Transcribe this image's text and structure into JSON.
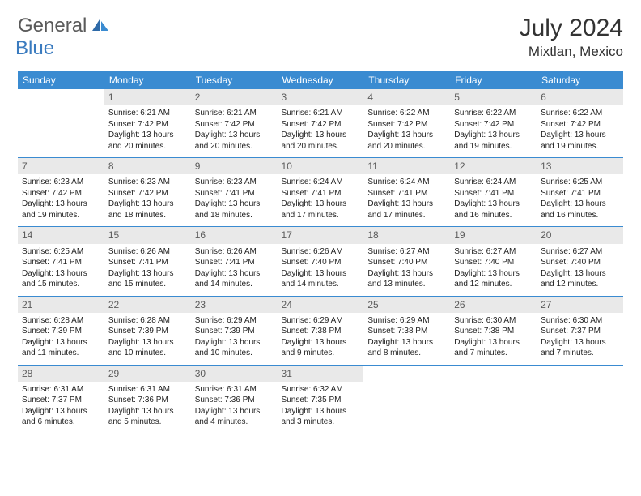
{
  "logo": {
    "word1": "General",
    "word2": "Blue"
  },
  "title": "July 2024",
  "location": "Mixtlan, Mexico",
  "colors": {
    "header_bg": "#3a8bd1",
    "header_text": "#ffffff",
    "daynum_bg": "#e9e9e9",
    "daynum_text": "#5b5b5b",
    "row_border": "#3a8bd1",
    "logo_gray": "#5a5a5a",
    "logo_blue": "#3a7bbf"
  },
  "day_names": [
    "Sunday",
    "Monday",
    "Tuesday",
    "Wednesday",
    "Thursday",
    "Friday",
    "Saturday"
  ],
  "weeks": [
    [
      null,
      {
        "n": "1",
        "sr": "Sunrise: 6:21 AM",
        "ss": "Sunset: 7:42 PM",
        "d1": "Daylight: 13 hours",
        "d2": "and 20 minutes."
      },
      {
        "n": "2",
        "sr": "Sunrise: 6:21 AM",
        "ss": "Sunset: 7:42 PM",
        "d1": "Daylight: 13 hours",
        "d2": "and 20 minutes."
      },
      {
        "n": "3",
        "sr": "Sunrise: 6:21 AM",
        "ss": "Sunset: 7:42 PM",
        "d1": "Daylight: 13 hours",
        "d2": "and 20 minutes."
      },
      {
        "n": "4",
        "sr": "Sunrise: 6:22 AM",
        "ss": "Sunset: 7:42 PM",
        "d1": "Daylight: 13 hours",
        "d2": "and 20 minutes."
      },
      {
        "n": "5",
        "sr": "Sunrise: 6:22 AM",
        "ss": "Sunset: 7:42 PM",
        "d1": "Daylight: 13 hours",
        "d2": "and 19 minutes."
      },
      {
        "n": "6",
        "sr": "Sunrise: 6:22 AM",
        "ss": "Sunset: 7:42 PM",
        "d1": "Daylight: 13 hours",
        "d2": "and 19 minutes."
      }
    ],
    [
      {
        "n": "7",
        "sr": "Sunrise: 6:23 AM",
        "ss": "Sunset: 7:42 PM",
        "d1": "Daylight: 13 hours",
        "d2": "and 19 minutes."
      },
      {
        "n": "8",
        "sr": "Sunrise: 6:23 AM",
        "ss": "Sunset: 7:42 PM",
        "d1": "Daylight: 13 hours",
        "d2": "and 18 minutes."
      },
      {
        "n": "9",
        "sr": "Sunrise: 6:23 AM",
        "ss": "Sunset: 7:41 PM",
        "d1": "Daylight: 13 hours",
        "d2": "and 18 minutes."
      },
      {
        "n": "10",
        "sr": "Sunrise: 6:24 AM",
        "ss": "Sunset: 7:41 PM",
        "d1": "Daylight: 13 hours",
        "d2": "and 17 minutes."
      },
      {
        "n": "11",
        "sr": "Sunrise: 6:24 AM",
        "ss": "Sunset: 7:41 PM",
        "d1": "Daylight: 13 hours",
        "d2": "and 17 minutes."
      },
      {
        "n": "12",
        "sr": "Sunrise: 6:24 AM",
        "ss": "Sunset: 7:41 PM",
        "d1": "Daylight: 13 hours",
        "d2": "and 16 minutes."
      },
      {
        "n": "13",
        "sr": "Sunrise: 6:25 AM",
        "ss": "Sunset: 7:41 PM",
        "d1": "Daylight: 13 hours",
        "d2": "and 16 minutes."
      }
    ],
    [
      {
        "n": "14",
        "sr": "Sunrise: 6:25 AM",
        "ss": "Sunset: 7:41 PM",
        "d1": "Daylight: 13 hours",
        "d2": "and 15 minutes."
      },
      {
        "n": "15",
        "sr": "Sunrise: 6:26 AM",
        "ss": "Sunset: 7:41 PM",
        "d1": "Daylight: 13 hours",
        "d2": "and 15 minutes."
      },
      {
        "n": "16",
        "sr": "Sunrise: 6:26 AM",
        "ss": "Sunset: 7:41 PM",
        "d1": "Daylight: 13 hours",
        "d2": "and 14 minutes."
      },
      {
        "n": "17",
        "sr": "Sunrise: 6:26 AM",
        "ss": "Sunset: 7:40 PM",
        "d1": "Daylight: 13 hours",
        "d2": "and 14 minutes."
      },
      {
        "n": "18",
        "sr": "Sunrise: 6:27 AM",
        "ss": "Sunset: 7:40 PM",
        "d1": "Daylight: 13 hours",
        "d2": "and 13 minutes."
      },
      {
        "n": "19",
        "sr": "Sunrise: 6:27 AM",
        "ss": "Sunset: 7:40 PM",
        "d1": "Daylight: 13 hours",
        "d2": "and 12 minutes."
      },
      {
        "n": "20",
        "sr": "Sunrise: 6:27 AM",
        "ss": "Sunset: 7:40 PM",
        "d1": "Daylight: 13 hours",
        "d2": "and 12 minutes."
      }
    ],
    [
      {
        "n": "21",
        "sr": "Sunrise: 6:28 AM",
        "ss": "Sunset: 7:39 PM",
        "d1": "Daylight: 13 hours",
        "d2": "and 11 minutes."
      },
      {
        "n": "22",
        "sr": "Sunrise: 6:28 AM",
        "ss": "Sunset: 7:39 PM",
        "d1": "Daylight: 13 hours",
        "d2": "and 10 minutes."
      },
      {
        "n": "23",
        "sr": "Sunrise: 6:29 AM",
        "ss": "Sunset: 7:39 PM",
        "d1": "Daylight: 13 hours",
        "d2": "and 10 minutes."
      },
      {
        "n": "24",
        "sr": "Sunrise: 6:29 AM",
        "ss": "Sunset: 7:38 PM",
        "d1": "Daylight: 13 hours",
        "d2": "and 9 minutes."
      },
      {
        "n": "25",
        "sr": "Sunrise: 6:29 AM",
        "ss": "Sunset: 7:38 PM",
        "d1": "Daylight: 13 hours",
        "d2": "and 8 minutes."
      },
      {
        "n": "26",
        "sr": "Sunrise: 6:30 AM",
        "ss": "Sunset: 7:38 PM",
        "d1": "Daylight: 13 hours",
        "d2": "and 7 minutes."
      },
      {
        "n": "27",
        "sr": "Sunrise: 6:30 AM",
        "ss": "Sunset: 7:37 PM",
        "d1": "Daylight: 13 hours",
        "d2": "and 7 minutes."
      }
    ],
    [
      {
        "n": "28",
        "sr": "Sunrise: 6:31 AM",
        "ss": "Sunset: 7:37 PM",
        "d1": "Daylight: 13 hours",
        "d2": "and 6 minutes."
      },
      {
        "n": "29",
        "sr": "Sunrise: 6:31 AM",
        "ss": "Sunset: 7:36 PM",
        "d1": "Daylight: 13 hours",
        "d2": "and 5 minutes."
      },
      {
        "n": "30",
        "sr": "Sunrise: 6:31 AM",
        "ss": "Sunset: 7:36 PM",
        "d1": "Daylight: 13 hours",
        "d2": "and 4 minutes."
      },
      {
        "n": "31",
        "sr": "Sunrise: 6:32 AM",
        "ss": "Sunset: 7:35 PM",
        "d1": "Daylight: 13 hours",
        "d2": "and 3 minutes."
      },
      null,
      null,
      null
    ]
  ]
}
